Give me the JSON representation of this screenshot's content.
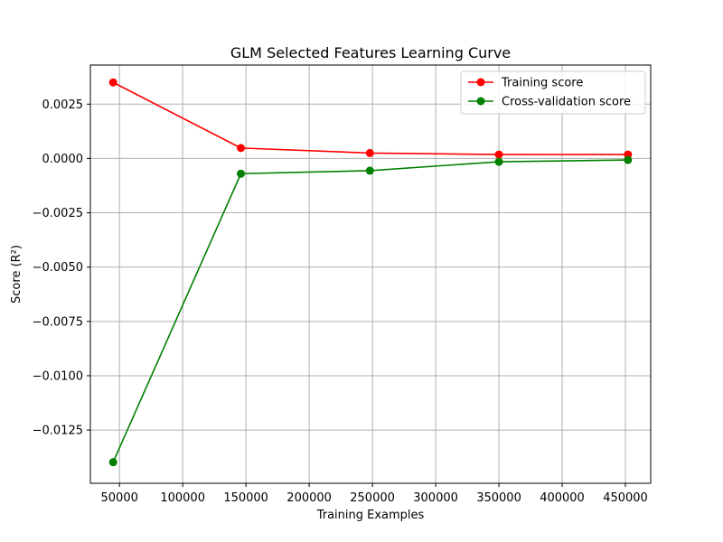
{
  "chart_data": {
    "type": "line",
    "title": "GLM Selected Features Learning Curve",
    "xlabel": "Training Examples",
    "ylabel": "Score (R²)",
    "xlim": [
      27000,
      470000
    ],
    "ylim": [
      -0.01495,
      0.0043
    ],
    "x": [
      45000,
      146000,
      248000,
      350000,
      452000
    ],
    "x_ticks": [
      50000,
      100000,
      150000,
      200000,
      250000,
      300000,
      350000,
      400000,
      450000
    ],
    "x_tick_labels": [
      "50000",
      "100000",
      "150000",
      "200000",
      "250000",
      "300000",
      "350000",
      "400000",
      "450000"
    ],
    "y_ticks": [
      0.0025,
      0.0,
      -0.0025,
      -0.005,
      -0.0075,
      -0.01,
      -0.0125
    ],
    "y_tick_labels": [
      "0.0025",
      "0.0000",
      "−0.0025",
      "−0.0050",
      "−0.0075",
      "−0.0100",
      "−0.0125"
    ],
    "grid": true,
    "legend_position": "top-right",
    "series": [
      {
        "name": "Training score",
        "color": "#ff0000",
        "values": [
          0.0035,
          0.00048,
          0.00025,
          0.00018,
          0.00018
        ]
      },
      {
        "name": "Cross-validation score",
        "color": "#008000",
        "values": [
          -0.01398,
          -0.0007,
          -0.00056,
          -0.00015,
          -7e-05
        ]
      }
    ]
  }
}
